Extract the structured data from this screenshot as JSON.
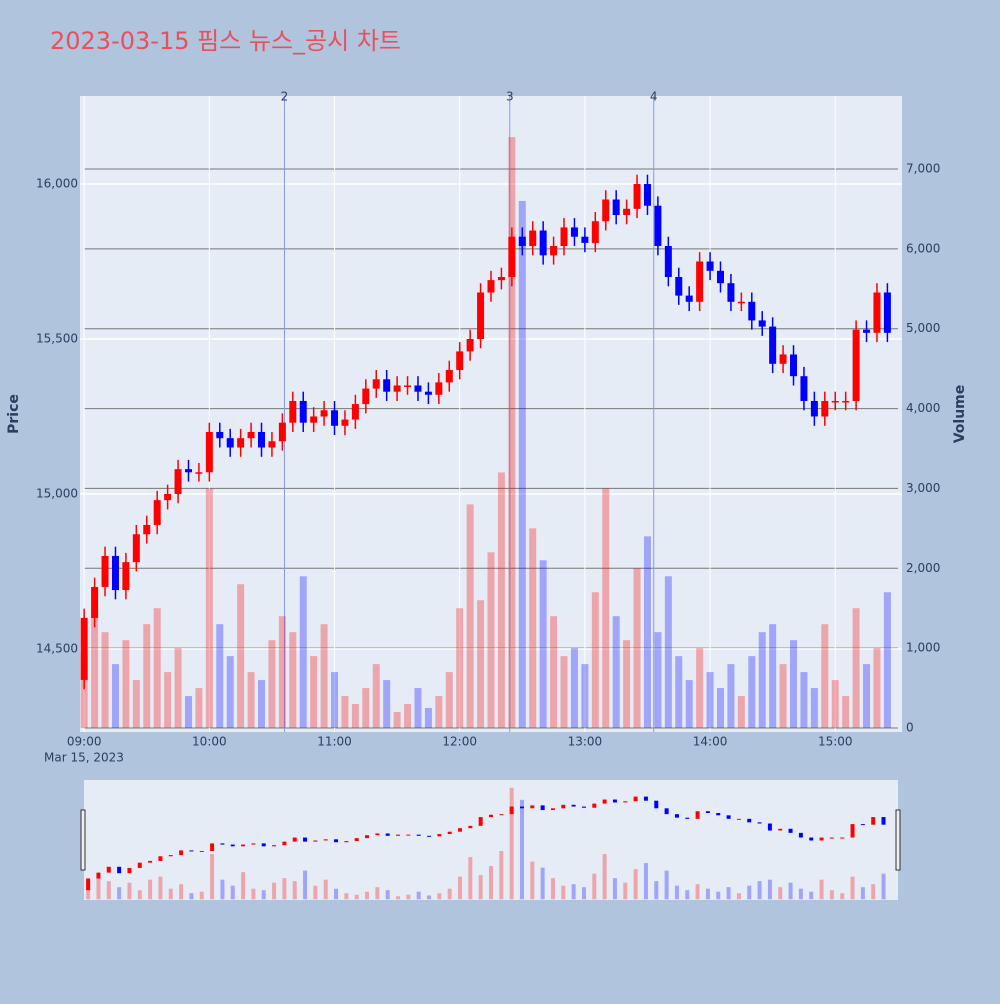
{
  "chart_data": {
    "type": "candlestick",
    "title": "2023-03-15 핌스 뉴스_공시 차트",
    "ylabel": "Price",
    "y2label": "Volume",
    "x_date_label": "Mar 15, 2023",
    "up_color": "#ff0000",
    "down_color": "#0000ff",
    "x": [
      "09:00",
      "09:05",
      "09:10",
      "09:15",
      "09:20",
      "09:25",
      "09:30",
      "09:35",
      "09:40",
      "09:45",
      "09:50",
      "09:55",
      "10:00",
      "10:05",
      "10:10",
      "10:15",
      "10:20",
      "10:25",
      "10:30",
      "10:35",
      "10:40",
      "10:45",
      "10:50",
      "10:55",
      "11:00",
      "11:05",
      "11:10",
      "11:15",
      "11:20",
      "11:25",
      "11:30",
      "11:35",
      "11:40",
      "11:45",
      "11:50",
      "11:55",
      "12:00",
      "12:05",
      "12:10",
      "12:15",
      "12:20",
      "12:25",
      "12:30",
      "12:35",
      "12:40",
      "12:45",
      "12:50",
      "12:55",
      "13:00",
      "13:05",
      "13:10",
      "13:15",
      "13:20",
      "13:25",
      "13:30",
      "13:35",
      "13:40",
      "13:45",
      "13:50",
      "13:55",
      "14:00",
      "14:05",
      "14:10",
      "14:15",
      "14:20",
      "14:25",
      "14:30",
      "14:35",
      "14:40",
      "14:45",
      "14:50",
      "14:55",
      "15:00",
      "15:05",
      "15:10",
      "15:15",
      "15:20",
      "15:25"
    ],
    "open": [
      14400,
      14600,
      14700,
      14800,
      14690,
      14780,
      14870,
      14900,
      14980,
      15000,
      15080,
      15070,
      15070,
      15200,
      15180,
      15150,
      15180,
      15200,
      15150,
      15170,
      15230,
      15300,
      15230,
      15250,
      15270,
      15220,
      15240,
      15290,
      15340,
      15370,
      15330,
      15350,
      15350,
      15330,
      15320,
      15360,
      15400,
      15460,
      15500,
      15650,
      15690,
      15700,
      15830,
      15800,
      15850,
      15770,
      15800,
      15860,
      15830,
      15810,
      15880,
      15950,
      15900,
      15920,
      16000,
      15930,
      15800,
      15700,
      15640,
      15620,
      15750,
      15720,
      15680,
      15620,
      15620,
      15560,
      15540,
      15420,
      15450,
      15380,
      15300,
      15250,
      15300,
      15300,
      15300,
      15530,
      15520,
      15650
    ],
    "high": [
      14630,
      14730,
      14830,
      14830,
      14810,
      14900,
      14930,
      15010,
      15030,
      15110,
      15110,
      15100,
      15230,
      15230,
      15210,
      15210,
      15230,
      15230,
      15200,
      15260,
      15330,
      15330,
      15280,
      15300,
      15300,
      15270,
      15320,
      15370,
      15400,
      15400,
      15380,
      15380,
      15380,
      15360,
      15390,
      15430,
      15490,
      15530,
      15680,
      15720,
      15730,
      15860,
      15860,
      15880,
      15880,
      15830,
      15890,
      15890,
      15860,
      15910,
      15980,
      15980,
      15950,
      16030,
      16030,
      15960,
      15830,
      15730,
      15670,
      15780,
      15780,
      15750,
      15710,
      15650,
      15650,
      15590,
      15570,
      15480,
      15480,
      15410,
      15330,
      15330,
      15330,
      15330,
      15560,
      15560,
      15680,
      15680
    ],
    "low": [
      14370,
      14570,
      14670,
      14660,
      14660,
      14750,
      14840,
      14870,
      14950,
      14970,
      15040,
      15040,
      15040,
      15150,
      15120,
      15120,
      15150,
      15120,
      15120,
      15140,
      15200,
      15200,
      15200,
      15220,
      15190,
      15190,
      15210,
      15260,
      15310,
      15300,
      15300,
      15320,
      15300,
      15290,
      15290,
      15330,
      15370,
      15430,
      15470,
      15620,
      15660,
      15670,
      15770,
      15770,
      15740,
      15740,
      15770,
      15800,
      15780,
      15780,
      15850,
      15870,
      15870,
      15890,
      15900,
      15770,
      15670,
      15610,
      15590,
      15590,
      15690,
      15650,
      15590,
      15590,
      15530,
      15510,
      15390,
      15390,
      15350,
      15270,
      15220,
      15220,
      15270,
      15270,
      15270,
      15490,
      15490,
      15490
    ],
    "close": [
      14600,
      14700,
      14800,
      14690,
      14780,
      14870,
      14900,
      14980,
      15000,
      15080,
      15070,
      15070,
      15200,
      15180,
      15150,
      15180,
      15200,
      15150,
      15170,
      15230,
      15300,
      15230,
      15250,
      15270,
      15220,
      15240,
      15290,
      15340,
      15370,
      15330,
      15350,
      15350,
      15330,
      15320,
      15360,
      15400,
      15460,
      15500,
      15650,
      15690,
      15700,
      15830,
      15800,
      15850,
      15770,
      15800,
      15860,
      15830,
      15810,
      15880,
      15950,
      15900,
      15920,
      16000,
      15930,
      15800,
      15700,
      15640,
      15620,
      15750,
      15720,
      15680,
      15620,
      15620,
      15560,
      15540,
      15420,
      15450,
      15380,
      15300,
      15250,
      15300,
      15300,
      15300,
      15530,
      15520,
      15650,
      15520
    ],
    "volume": [
      900,
      1400,
      1200,
      800,
      1100,
      600,
      1300,
      1500,
      700,
      1000,
      400,
      500,
      3000,
      1300,
      900,
      1800,
      700,
      600,
      1100,
      1400,
      1200,
      1900,
      900,
      1300,
      700,
      400,
      300,
      500,
      800,
      600,
      200,
      300,
      500,
      250,
      400,
      700,
      1500,
      2800,
      1600,
      2200,
      3200,
      7400,
      6600,
      2500,
      2100,
      1400,
      900,
      1000,
      800,
      1700,
      3000,
      1400,
      1100,
      2000,
      2400,
      1200,
      1900,
      900,
      600,
      1000,
      700,
      500,
      800,
      400,
      900,
      1200,
      1300,
      800,
      1100,
      700,
      500,
      1300,
      600,
      400,
      1500,
      800,
      1000,
      1700
    ],
    "xlim": [
      "08:58",
      "15:32"
    ],
    "xticks": [
      "09:00",
      "10:00",
      "11:00",
      "12:00",
      "13:00",
      "14:00",
      "15:00"
    ],
    "ylim": [
      14232,
      16284
    ],
    "yticks": [
      {
        "value": 14500,
        "label": "14,500"
      },
      {
        "value": 15000,
        "label": "15,000"
      },
      {
        "value": 15500,
        "label": "15,500"
      },
      {
        "value": 16000,
        "label": "16,000"
      }
    ],
    "y2lim": [
      -50,
      7914
    ],
    "y2ticks": [
      0,
      {
        "value": 1000,
        "label": "1,000"
      },
      {
        "value": 2000,
        "label": "2,000"
      },
      {
        "value": 3000,
        "label": "3,000"
      },
      {
        "value": 4000,
        "label": "4,000"
      },
      {
        "value": 5000,
        "label": "5,000"
      },
      {
        "value": 6000,
        "label": "6,000"
      },
      {
        "value": 7000,
        "label": "7,000"
      }
    ],
    "events": [
      {
        "x": "10:36",
        "label": "2"
      },
      {
        "x": "12:24",
        "label": "3"
      },
      {
        "x": "13:33",
        "label": "4"
      }
    ]
  }
}
